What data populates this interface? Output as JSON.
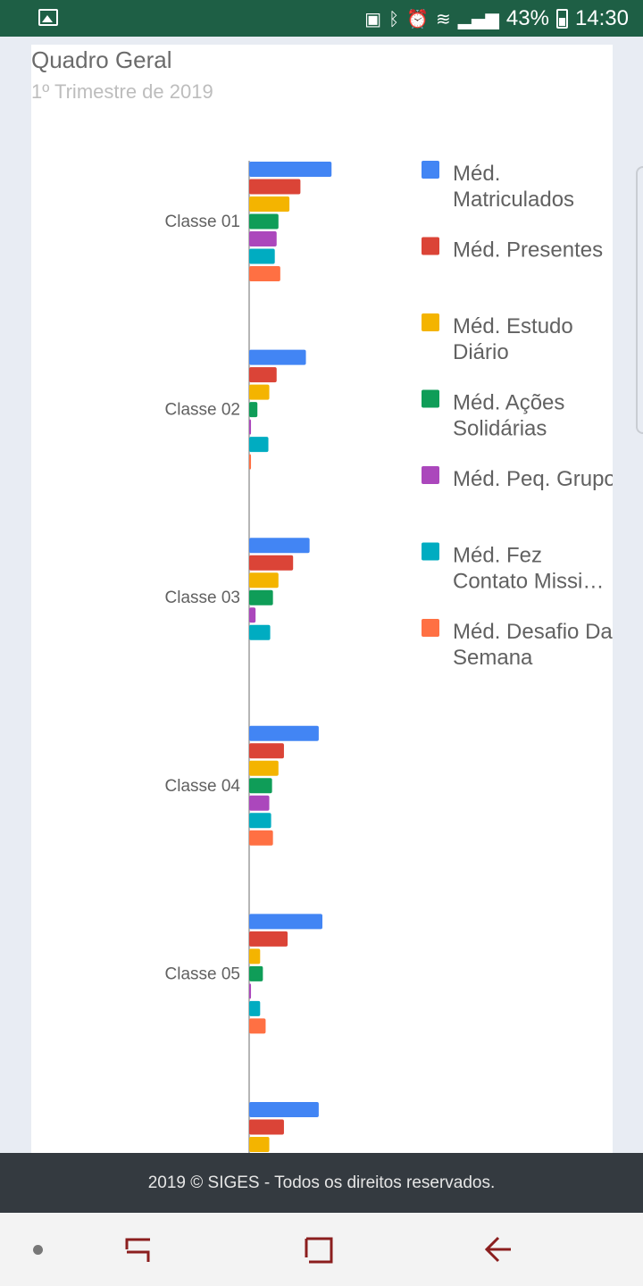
{
  "status_bar": {
    "battery": "43%",
    "time": "14:30"
  },
  "header": {
    "title": "Quadro Geral",
    "subtitle": "1º Trimestre de 2019"
  },
  "footer": {
    "text": "2019 © SIGES - Todos os direitos reservados."
  },
  "colors": {
    "status_bar": "#1e5f45",
    "footer": "#343a40",
    "nav_icon": "#8b1e1e",
    "series": [
      "#4285f4",
      "#db4437",
      "#f4b400",
      "#0f9d58",
      "#ab47bc",
      "#00acc1",
      "#ff7043"
    ]
  },
  "nav": {
    "icons": [
      "recent-apps-icon",
      "home-icon",
      "back-icon"
    ]
  },
  "chart_data": {
    "type": "bar",
    "orientation": "horizontal",
    "grouped": true,
    "title": "Quadro Geral",
    "subtitle": "1º Trimestre de 2019",
    "legend_position": "right",
    "grid": false,
    "xlim": [
      0,
      1
    ],
    "categories": [
      "Classe 01",
      "Classe 02",
      "Classe 03",
      "Classe 04",
      "Classe 05",
      ""
    ],
    "series": [
      {
        "name": "Méd. Matriculados",
        "color": "#4285f4",
        "values": [
          0.45,
          0.31,
          0.33,
          0.38,
          0.4,
          0.38
        ]
      },
      {
        "name": "Méd. Presentes",
        "color": "#db4437",
        "values": [
          0.28,
          0.15,
          0.24,
          0.19,
          0.21,
          0.19
        ]
      },
      {
        "name": "Méd. Estudo Diário",
        "color": "#f4b400",
        "values": [
          0.22,
          0.11,
          0.16,
          0.16,
          0.06,
          0.11
        ]
      },
      {
        "name": "Méd. Ações Solidárias",
        "color": "#0f9d58",
        "values": [
          0.16,
          0.045,
          0.13,
          0.125,
          0.075,
          null
        ]
      },
      {
        "name": "Méd. Peq. Grupo",
        "color": "#ab47bc",
        "values": [
          0.15,
          0.01,
          0.035,
          0.11,
          0.01,
          null
        ]
      },
      {
        "name": "Méd. Fez Contato Missi…",
        "color": "#00acc1",
        "values": [
          0.14,
          0.105,
          0.115,
          0.12,
          0.06,
          null
        ]
      },
      {
        "name": "Méd. Desafio Da Semana",
        "color": "#ff7043",
        "values": [
          0.17,
          0.01,
          0,
          0.13,
          0.09,
          null
        ]
      }
    ]
  }
}
